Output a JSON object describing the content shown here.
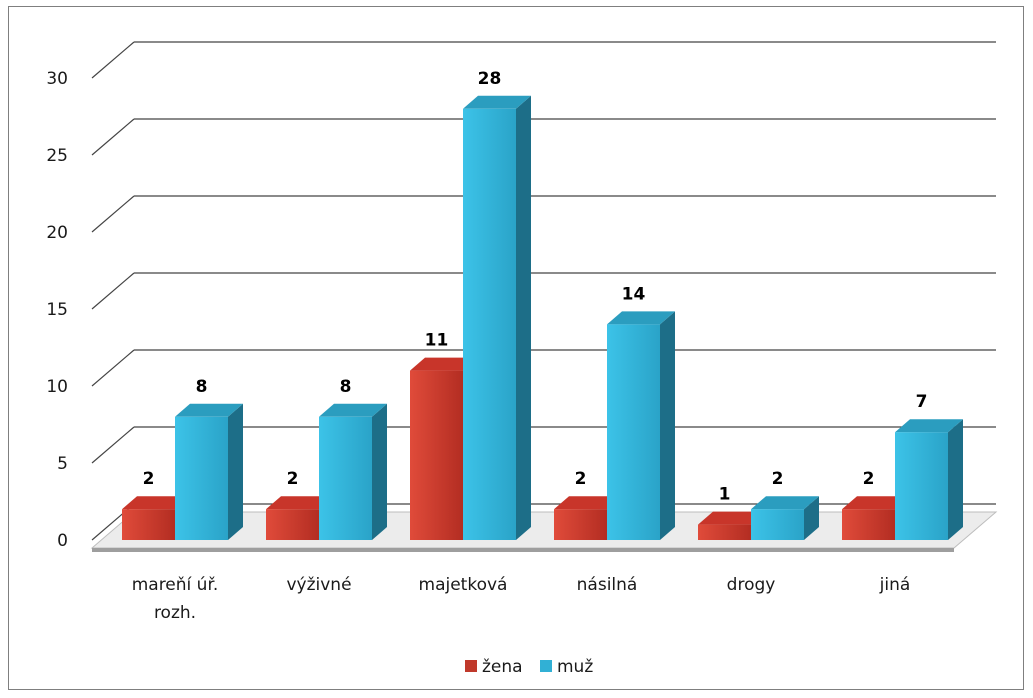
{
  "chart_data": {
    "type": "bar",
    "title": "",
    "xlabel": "",
    "ylabel": "",
    "categories": [
      [
        "mareňí úř.",
        "rozh."
      ],
      [
        "výživné"
      ],
      [
        "majetková"
      ],
      [
        "násilná"
      ],
      [
        "drogy"
      ],
      [
        "jiná"
      ]
    ],
    "series": [
      {
        "name": "žena",
        "values": [
          2,
          2,
          11,
          2,
          1,
          2
        ]
      },
      {
        "name": "muž",
        "values": [
          8,
          8,
          28,
          14,
          2,
          7
        ]
      }
    ],
    "ylim": [
      0,
      30
    ],
    "yticks": [
      "0",
      "5",
      "10",
      "15",
      "20",
      "25",
      "30"
    ],
    "grid": true,
    "legend_position": "bottom",
    "colors": {
      "žena": "#c0392b",
      "muž": "#31b0d5"
    }
  }
}
